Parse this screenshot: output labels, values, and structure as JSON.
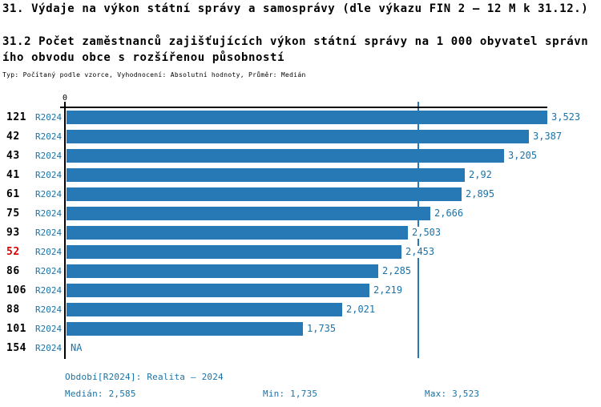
{
  "header": {
    "title": "31. Výdaje na výkon státní správy a samosprávy (dle výkazu FIN 2 – 12 M k 31.12.)",
    "subtitle_line1": "31.2 Počet zaměstnanců zajišťujících výkon státní správy na 1 000 obyvatel správn",
    "subtitle_line2": "ího obvodu obce s rozšířenou působností",
    "meta": "Typ: Počítaný podle vzorce, Vyhodnocení: Absolutní hodnoty, Průměr: Medián"
  },
  "chart_data": {
    "type": "bar",
    "orientation": "horizontal",
    "title": "31.2 Počet zaměstnanců zajišťujících výkon státní správy na 1 000 obyvatel správního obvodu obce s rozšířenou působností",
    "x_axis": {
      "min": 0,
      "max": 3.523,
      "origin_label": "0"
    },
    "median_value": 2.585,
    "legend_position": "bottom",
    "grid": false,
    "rows": [
      {
        "code": "121",
        "period": "R2024",
        "value": 3.523,
        "value_label": "3,523",
        "highlight": false
      },
      {
        "code": "42",
        "period": "R2024",
        "value": 3.387,
        "value_label": "3,387",
        "highlight": false
      },
      {
        "code": "43",
        "period": "R2024",
        "value": 3.205,
        "value_label": "3,205",
        "highlight": false
      },
      {
        "code": "41",
        "period": "R2024",
        "value": 2.92,
        "value_label": "2,92",
        "highlight": false
      },
      {
        "code": "61",
        "period": "R2024",
        "value": 2.895,
        "value_label": "2,895",
        "highlight": false
      },
      {
        "code": "75",
        "period": "R2024",
        "value": 2.666,
        "value_label": "2,666",
        "highlight": false
      },
      {
        "code": "93",
        "period": "R2024",
        "value": 2.503,
        "value_label": "2,503",
        "highlight": false
      },
      {
        "code": "52",
        "period": "R2024",
        "value": 2.453,
        "value_label": "2,453",
        "highlight": true
      },
      {
        "code": "86",
        "period": "R2024",
        "value": 2.285,
        "value_label": "2,285",
        "highlight": false
      },
      {
        "code": "106",
        "period": "R2024",
        "value": 2.219,
        "value_label": "2,219",
        "highlight": false
      },
      {
        "code": "88",
        "period": "R2024",
        "value": 2.021,
        "value_label": "2,021",
        "highlight": false
      },
      {
        "code": "101",
        "period": "R2024",
        "value": 1.735,
        "value_label": "1,735",
        "highlight": false
      },
      {
        "code": "154",
        "period": "R2024",
        "value": null,
        "value_label": "NA",
        "highlight": false
      }
    ],
    "colors": {
      "bar": "#2679b5",
      "text_blue": "#1a73a8",
      "highlight_red": "#dd0000",
      "axis": "#000000"
    }
  },
  "footer": {
    "period_line": "Období[R2024]: Realita – 2024",
    "median": "Medián: 2,585",
    "min": "Min: 1,735",
    "max": "Max: 3,523"
  }
}
